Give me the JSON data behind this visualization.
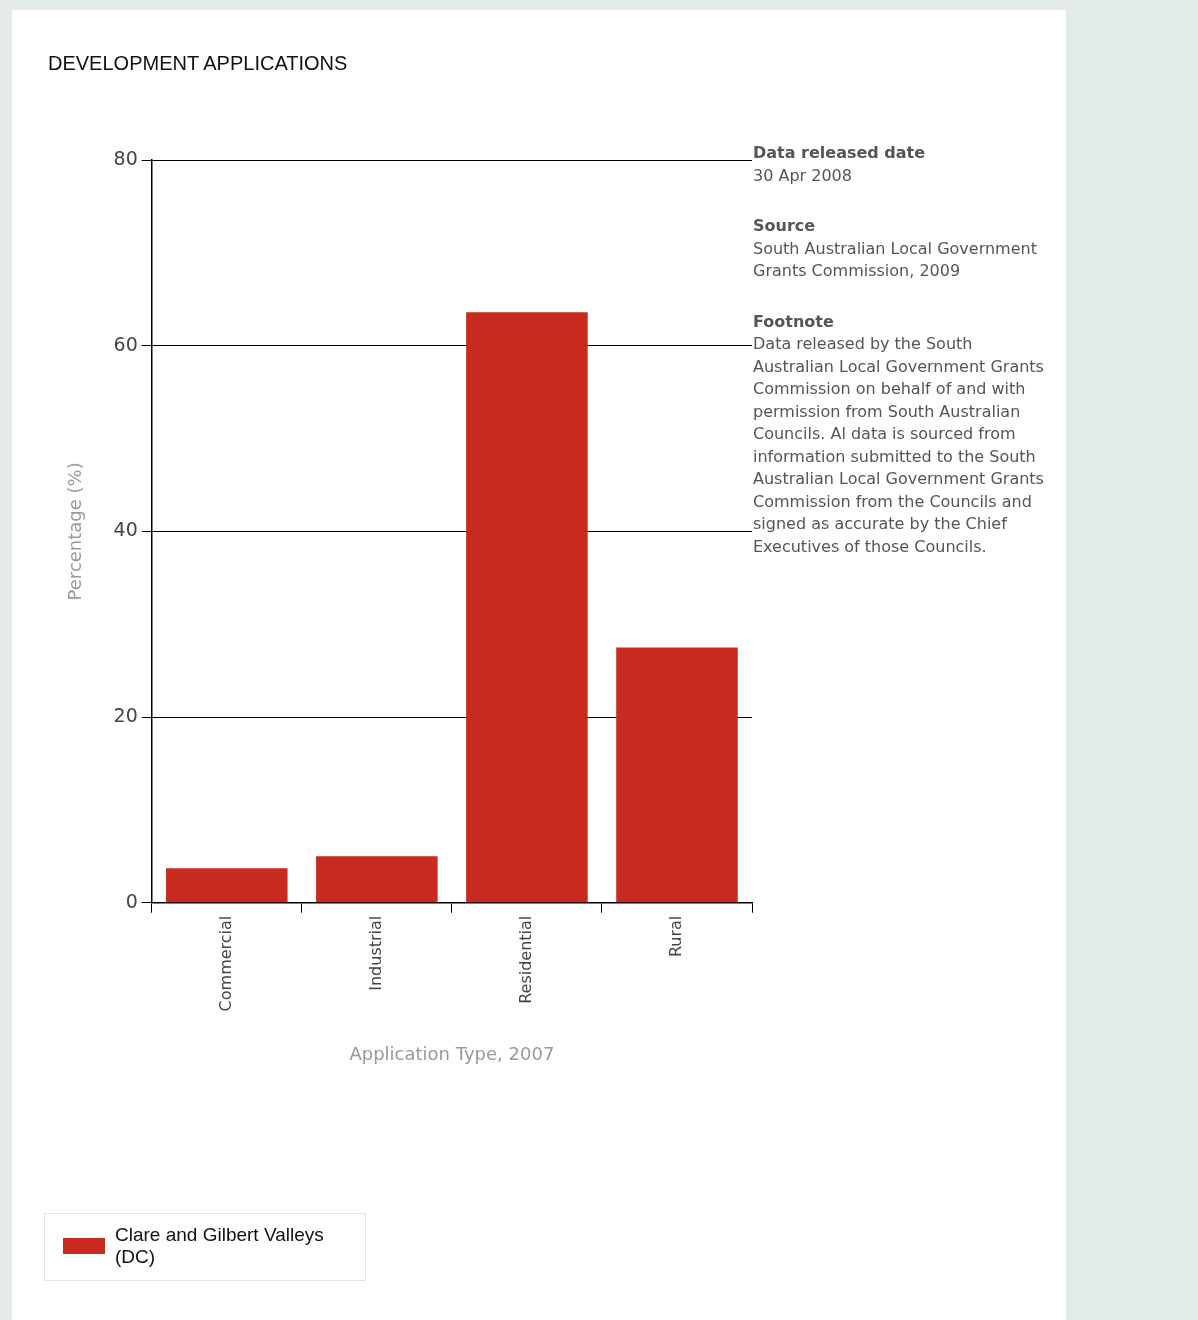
{
  "chart_data": {
    "type": "bar",
    "title": "DEVELOPMENT APPLICATIONS",
    "xlabel": "Application Type, 2007",
    "ylabel": "Percentage (%)",
    "categories": [
      "Commercial",
      "Industrial",
      "Residential",
      "Rural"
    ],
    "series": [
      {
        "name": "Clare and Gilbert Valleys (DC)",
        "color": "#c72b1f",
        "values": [
          3.7,
          5.0,
          63.6,
          27.5
        ]
      }
    ],
    "ylim": [
      0,
      80
    ],
    "yticks": [
      0,
      20,
      40,
      60,
      80
    ],
    "grid": "y",
    "legend": "bottom left",
    "annotations": [
      "Data released date",
      "30 Apr 2008",
      "Source",
      "South Australian Local Government Grants Commission, 2009",
      "Footnote",
      "Data released by the South Australian Local Government Grants Commission on behalf of and with permission from South Australian Councils. Al data is sourced from information submitted to the South Australian Local Government Grants Commission from the Councils and signed as accurate by the Chief Executives of those Councils."
    ]
  }
}
